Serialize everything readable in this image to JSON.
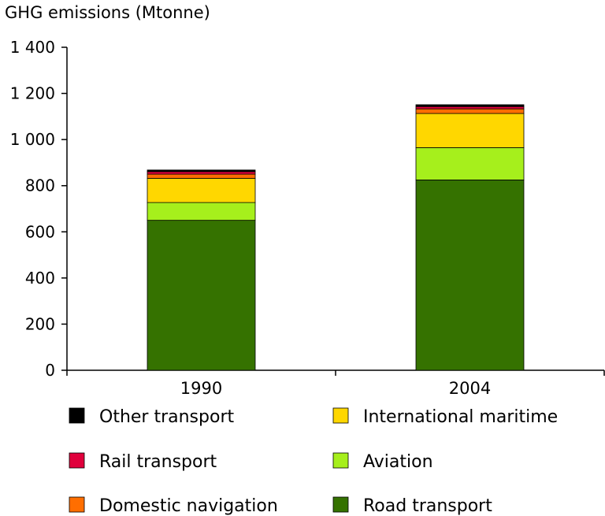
{
  "chart_data": {
    "type": "bar",
    "stacked": true,
    "ylabel": "GHG emissions (Mtonne)",
    "xlabel": "",
    "ylim": [
      0,
      1400
    ],
    "yticks": [
      0,
      200,
      400,
      600,
      800,
      1000,
      1200,
      1400
    ],
    "ytick_labels": [
      "0",
      "200",
      "400",
      "600",
      "800",
      "1 000",
      "1 200",
      "1 400"
    ],
    "categories": [
      "1990",
      "2004"
    ],
    "series": [
      {
        "name": "Road transport",
        "color": "#357200",
        "values": [
          650,
          825
        ]
      },
      {
        "name": "Aviation",
        "color": "#a6ef1c",
        "values": [
          77,
          140
        ]
      },
      {
        "name": "International maritime",
        "color": "#ffd700",
        "values": [
          105,
          148
        ]
      },
      {
        "name": "Domestic navigation",
        "color": "#ff6e00",
        "values": [
          18,
          20
        ]
      },
      {
        "name": "Rail transport",
        "color": "#e0003c",
        "values": [
          11,
          10
        ]
      },
      {
        "name": "Other transport",
        "color": "#000000",
        "values": [
          7,
          8
        ]
      }
    ],
    "legend": {
      "placement": "bottom",
      "columns": [
        [
          "Other transport",
          "Rail transport",
          "Domestic navigation"
        ],
        [
          "International maritime",
          "Aviation",
          "Road transport"
        ]
      ]
    },
    "grid": false
  }
}
